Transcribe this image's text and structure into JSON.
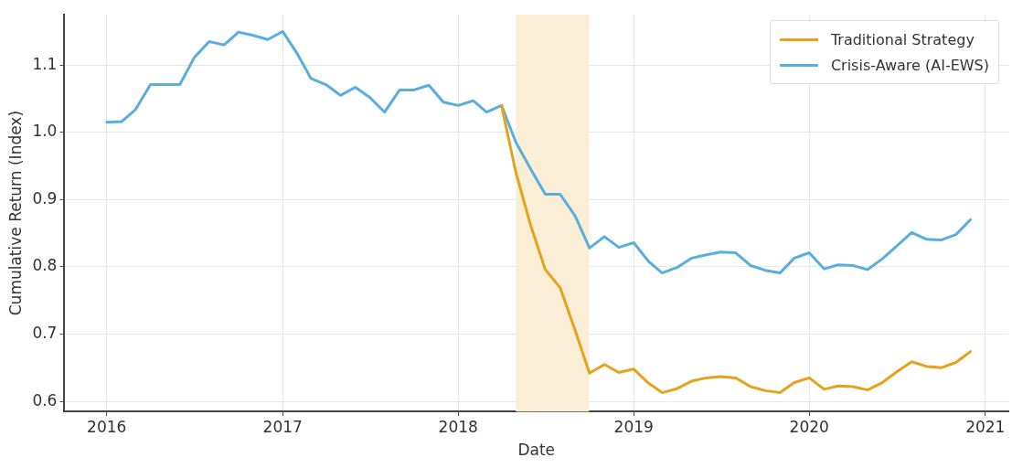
{
  "chart_data": {
    "type": "line",
    "xlabel": "Date",
    "ylabel": "Cumulative Return (Index)",
    "x": [
      "2016-01",
      "2016-02",
      "2016-03",
      "2016-04",
      "2016-05",
      "2016-06",
      "2016-07",
      "2016-08",
      "2016-09",
      "2016-10",
      "2016-11",
      "2016-12",
      "2017-01",
      "2017-02",
      "2017-03",
      "2017-04",
      "2017-05",
      "2017-06",
      "2017-07",
      "2017-08",
      "2017-09",
      "2017-10",
      "2017-11",
      "2017-12",
      "2018-01",
      "2018-02",
      "2018-03",
      "2018-04",
      "2018-05",
      "2018-06",
      "2018-07",
      "2018-08",
      "2018-09",
      "2018-10",
      "2018-11",
      "2018-12",
      "2019-01",
      "2019-02",
      "2019-03",
      "2019-04",
      "2019-05",
      "2019-06",
      "2019-07",
      "2019-08",
      "2019-09",
      "2019-10",
      "2019-11",
      "2019-12",
      "2020-01",
      "2020-02",
      "2020-03",
      "2020-04",
      "2020-05",
      "2020-06",
      "2020-07",
      "2020-08",
      "2020-09",
      "2020-10",
      "2020-11",
      "2020-12"
    ],
    "series": [
      {
        "name": "Traditional Strategy",
        "color": "#e6a21a",
        "values": [
          null,
          null,
          null,
          null,
          null,
          null,
          null,
          null,
          null,
          null,
          null,
          null,
          null,
          null,
          null,
          null,
          null,
          null,
          null,
          null,
          null,
          null,
          null,
          null,
          null,
          null,
          null,
          1.04,
          0.94,
          0.861,
          0.796,
          0.769,
          0.706,
          0.642,
          0.655,
          0.643,
          0.648,
          0.627,
          0.613,
          0.619,
          0.63,
          0.635,
          0.637,
          0.635,
          0.622,
          0.616,
          0.613,
          0.628,
          0.635,
          0.618,
          0.623,
          0.622,
          0.617,
          0.628,
          0.644,
          0.659,
          0.652,
          0.65,
          0.658,
          0.674
        ]
      },
      {
        "name": "Crisis-Aware (AI-EWS)",
        "color": "#5aaedf",
        "values": [
          1.015,
          1.016,
          1.034,
          1.071,
          1.071,
          1.071,
          1.111,
          1.135,
          1.13,
          1.149,
          1.144,
          1.138,
          1.15,
          1.116,
          1.08,
          1.071,
          1.055,
          1.067,
          1.052,
          1.03,
          1.063,
          1.063,
          1.07,
          1.045,
          1.04,
          1.047,
          1.03,
          1.04,
          0.985,
          0.945,
          0.908,
          0.908,
          0.876,
          0.828,
          0.845,
          0.829,
          0.836,
          0.808,
          0.791,
          0.799,
          0.813,
          0.818,
          0.822,
          0.821,
          0.802,
          0.795,
          0.791,
          0.813,
          0.821,
          0.797,
          0.803,
          0.802,
          0.796,
          0.812,
          0.831,
          0.851,
          0.841,
          0.84,
          0.848,
          0.87
        ]
      }
    ],
    "xlim": [
      "2015-10-05",
      "2021-02-18"
    ],
    "xticks": [
      "2016",
      "2017",
      "2018",
      "2019",
      "2020",
      "2021"
    ],
    "ylim": [
      0.585,
      1.175
    ],
    "yticks": [
      0.6,
      0.7,
      0.8,
      0.9,
      {
        "value": 1,
        "label": "1.0"
      },
      1.1
    ],
    "bands": [
      {
        "axis": "x",
        "from": "2018-05-01",
        "to": "2018-09-30",
        "color": "#fbeed6"
      }
    ],
    "grid": true,
    "legend": "top right",
    "marker": "none",
    "line_style": "solid"
  }
}
